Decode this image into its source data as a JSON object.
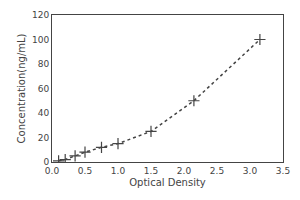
{
  "chart_data": {
    "type": "line",
    "x": [
      0.1,
      0.2,
      0.35,
      0.5,
      0.75,
      1.0,
      1.5,
      2.15,
      3.15
    ],
    "values": [
      1,
      2,
      5,
      8,
      12,
      15,
      25,
      50,
      100
    ],
    "xlabel": "Optical Density",
    "ylabel": "Concentration(ng/mL)",
    "xlim": [
      0,
      3.5
    ],
    "ylim": [
      0,
      120
    ],
    "xticks": [
      {
        "value": 0,
        "label": "0.0"
      },
      0.5,
      {
        "value": 1,
        "label": "1.0"
      },
      1.5,
      {
        "value": 2,
        "label": "2.0"
      },
      2.5,
      {
        "value": 3,
        "label": "3.0"
      },
      3.5
    ],
    "yticks": [
      0,
      20,
      40,
      60,
      80,
      100,
      120
    ],
    "color": "#444444",
    "marker": "plus",
    "line_style": "dotted",
    "grid": false
  }
}
